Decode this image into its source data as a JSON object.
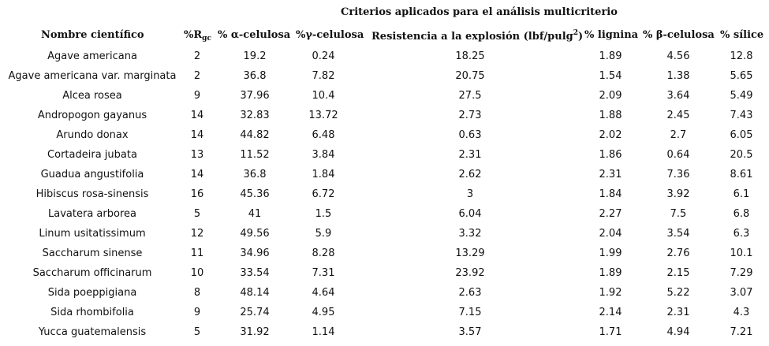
{
  "title": "Criterios aplicados para el análisis multicriterio",
  "headers": {
    "name": "Nombre científico",
    "rg_prefix": "%R",
    "rg_sub": "gc",
    "alpha": "% α-celulosa",
    "gamma": "%γ-celulosa",
    "burst_main": "Resistencia a la explosión (lbf/pulg",
    "burst_sup": "2",
    "burst_end": ")",
    "lignina": "% lignina",
    "beta": "% β-celulosa",
    "silice": "% sílice"
  },
  "rows": [
    {
      "name": "Agave americana",
      "rg": "2",
      "alpha": "19.2",
      "gamma": "0.24",
      "burst": "18.25",
      "lignina": "1.89",
      "beta": "4.56",
      "silice": "12.8"
    },
    {
      "name": "Agave americana var. marginata",
      "rg": "2",
      "alpha": "36.8",
      "gamma": "7.82",
      "burst": "20.75",
      "lignina": "1.54",
      "beta": "1.38",
      "silice": "5.65"
    },
    {
      "name": "Alcea rosea",
      "rg": "9",
      "alpha": "37.96",
      "gamma": "10.4",
      "burst": "27.5",
      "lignina": "2.09",
      "beta": "3.64",
      "silice": "5.49"
    },
    {
      "name": "Andropogon gayanus",
      "rg": "14",
      "alpha": "32.83",
      "gamma": "13.72",
      "burst": "2.73",
      "lignina": "1.88",
      "beta": "2.45",
      "silice": "7.43"
    },
    {
      "name": "Arundo donax",
      "rg": "14",
      "alpha": "44.82",
      "gamma": "6.48",
      "burst": "0.63",
      "lignina": "2.02",
      "beta": "2.7",
      "silice": "6.05"
    },
    {
      "name": "Cortadeira jubata",
      "rg": "13",
      "alpha": "11.52",
      "gamma": "3.84",
      "burst": "2.31",
      "lignina": "1.86",
      "beta": "0.64",
      "silice": "20.5"
    },
    {
      "name": "Guadua angustifolia",
      "rg": "14",
      "alpha": "36.8",
      "gamma": "1.84",
      "burst": "2.62",
      "lignina": "2.31",
      "beta": "7.36",
      "silice": "8.61"
    },
    {
      "name": "Hibiscus rosa-sinensis",
      "rg": "16",
      "alpha": "45.36",
      "gamma": "6.72",
      "burst": "3",
      "lignina": "1.84",
      "beta": "3.92",
      "silice": "6.1"
    },
    {
      "name": "Lavatera arborea",
      "rg": "5",
      "alpha": "41",
      "gamma": "1.5",
      "burst": "6.04",
      "lignina": "2.27",
      "beta": "7.5",
      "silice": "6.8"
    },
    {
      "name": "Linum usitatissimum",
      "rg": "12",
      "alpha": "49.56",
      "gamma": "5.9",
      "burst": "3.32",
      "lignina": "2.04",
      "beta": "3.54",
      "silice": "6.3"
    },
    {
      "name": "Saccharum sinense",
      "rg": "11",
      "alpha": "34.96",
      "gamma": "8.28",
      "burst": "13.29",
      "lignina": "1.99",
      "beta": "2.76",
      "silice": "10.1"
    },
    {
      "name": "Saccharum officinarum",
      "rg": "10",
      "alpha": "33.54",
      "gamma": "7.31",
      "burst": "23.92",
      "lignina": "1.89",
      "beta": "2.15",
      "silice": "7.29"
    },
    {
      "name": "Sida poeppigiana",
      "rg": "8",
      "alpha": "48.14",
      "gamma": "4.64",
      "burst": "2.63",
      "lignina": "1.92",
      "beta": "5.22",
      "silice": "3.07"
    },
    {
      "name": "Sida rhombifolia",
      "rg": "9",
      "alpha": "25.74",
      "gamma": "4.95",
      "burst": "7.15",
      "lignina": "2.14",
      "beta": "2.31",
      "silice": "4.3"
    },
    {
      "name": "Yucca guatemalensis",
      "rg": "5",
      "alpha": "31.92",
      "gamma": "1.14",
      "burst": "3.57",
      "lignina": "1.71",
      "beta": "4.94",
      "silice": "7.21"
    }
  ]
}
